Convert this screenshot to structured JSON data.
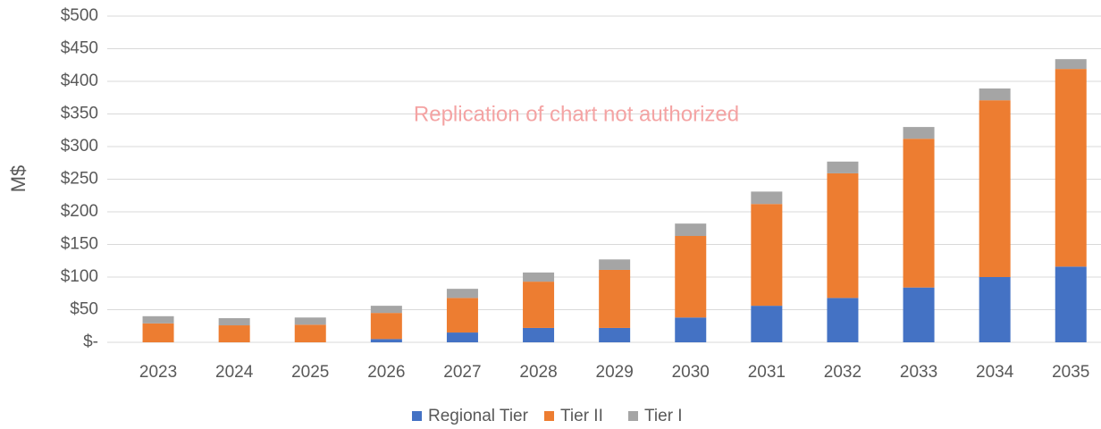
{
  "chart_data": {
    "type": "stacked_bar",
    "y_label": "M$",
    "annotation": "Replication of chart not authorized",
    "categories": [
      "2023",
      "2024",
      "2025",
      "2026",
      "2027",
      "2028",
      "2029",
      "2030",
      "2031",
      "2032",
      "2033",
      "2034",
      "2035"
    ],
    "series": [
      {
        "name": "Regional Tier",
        "color": "#4472c4",
        "values": [
          0,
          0,
          0,
          5,
          15,
          22,
          22,
          38,
          56,
          68,
          84,
          100,
          116
        ]
      },
      {
        "name": "Tier II",
        "color": "#ed7d31",
        "values": [
          29,
          26,
          27,
          40,
          53,
          71,
          89,
          125,
          156,
          191,
          228,
          271,
          303
        ]
      },
      {
        "name": "Tier I",
        "color": "#a5a5a5",
        "values": [
          11,
          11,
          11,
          11,
          14,
          14,
          16,
          19,
          19,
          18,
          18,
          18,
          15
        ]
      }
    ],
    "ylim": [
      0,
      500
    ],
    "yticks": [
      {
        "value": 0,
        "label": "$-"
      },
      {
        "value": 50,
        "label": "$50"
      },
      {
        "value": 100,
        "label": "$100"
      },
      {
        "value": 150,
        "label": "$150"
      },
      {
        "value": 200,
        "label": "$200"
      },
      {
        "value": 250,
        "label": "$250"
      },
      {
        "value": 300,
        "label": "$300"
      },
      {
        "value": 350,
        "label": "$350"
      },
      {
        "value": 400,
        "label": "$400"
      },
      {
        "value": 450,
        "label": "$450"
      },
      {
        "value": 500,
        "label": "$500"
      }
    ],
    "grid": true,
    "legend": "bottom"
  }
}
